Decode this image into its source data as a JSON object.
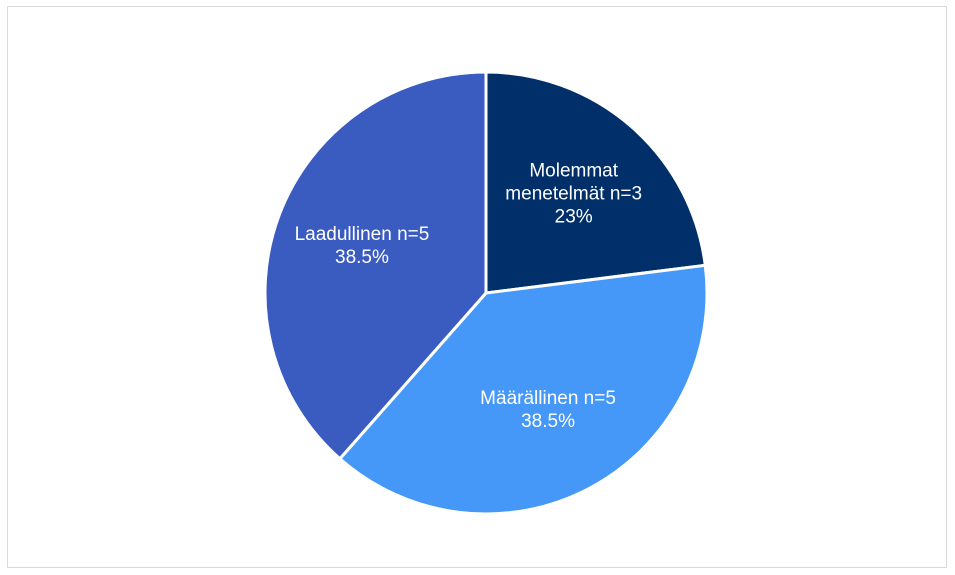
{
  "chart_data": {
    "type": "pie",
    "categories": [
      "Molemmat menetelmät n=3",
      "Määrällinen n=5",
      "Laadullinen n=5"
    ],
    "values": [
      23,
      38.5,
      38.5
    ],
    "value_labels": [
      "23%",
      "38.5%",
      "38.5%"
    ],
    "colors": [
      "#002f6a",
      "#4597f8",
      "#3a5bbf"
    ]
  }
}
